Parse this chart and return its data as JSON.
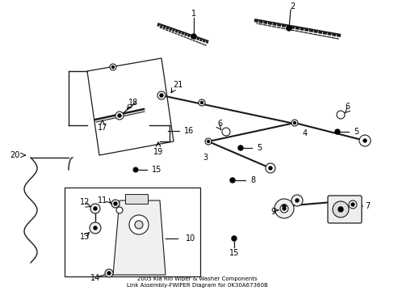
{
  "title": "2005 Kia Rio Wiper & Washer Components\nLink Assembly-FWIPER Diagram for 0K30A67360B",
  "background_color": "#ffffff",
  "line_color": "#1a1a1a",
  "text_color": "#000000"
}
